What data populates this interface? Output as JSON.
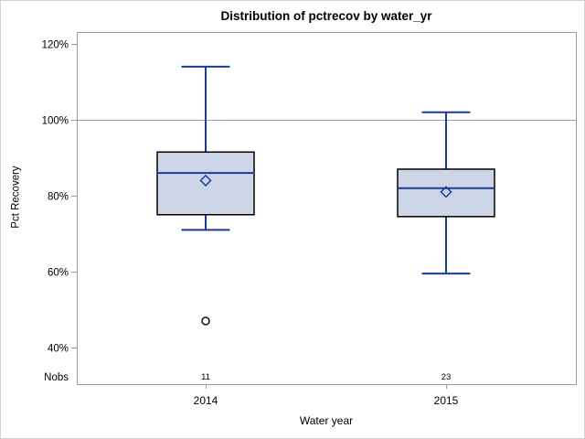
{
  "chart_data": {
    "type": "box",
    "title": "Distribution of pctrecov by water_yr",
    "xlabel": "Water year",
    "ylabel": "Pct Recovery",
    "nobs_row_label": "Nobs",
    "y_axis": {
      "unit": "percent",
      "ticks": [
        {
          "value": 120,
          "label": "120%"
        },
        {
          "value": 100,
          "label": "100%"
        },
        {
          "value": 80,
          "label": "80%"
        },
        {
          "value": 60,
          "label": "60%"
        },
        {
          "value": 40,
          "label": "40%"
        }
      ],
      "reference_line": 100
    },
    "categories": [
      "2014",
      "2015"
    ],
    "series": [
      {
        "category": "2014",
        "whisker_low": 71,
        "q1": 75,
        "median": 86,
        "q3": 91.5,
        "whisker_high": 114,
        "mean": 84,
        "outliers": [
          47
        ],
        "nobs": 11
      },
      {
        "category": "2015",
        "whisker_low": 59.5,
        "q1": 74.5,
        "median": 82,
        "q3": 87,
        "whisker_high": 102,
        "mean": 81,
        "outliers": [],
        "nobs": 23
      }
    ],
    "colors": {
      "box_fill": "#ccd6e6",
      "box_border": "#000000",
      "line_blue": "#1a3a9c",
      "axis_gray": "#9b9b9b",
      "reference_gray": "#9b9b9b",
      "outlier_stroke": "#000000",
      "text": "#000000"
    }
  }
}
